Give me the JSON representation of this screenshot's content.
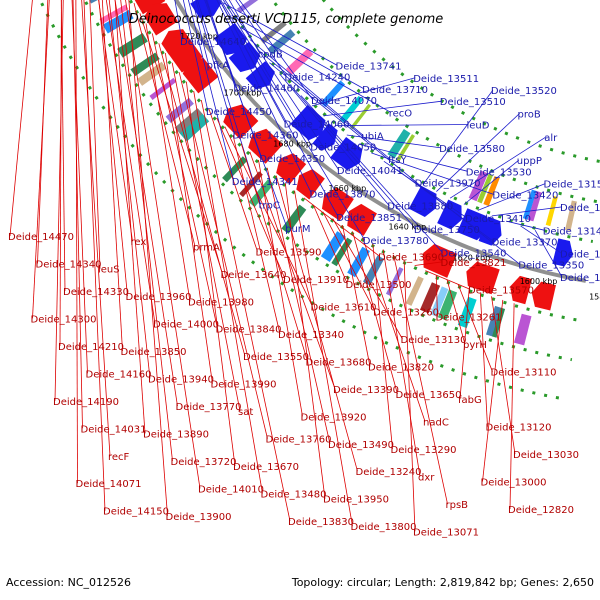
{
  "title": "Deinococcus deserti VCD115, complete genome",
  "footer": {
    "accession": "Accession: NC_012526",
    "summary": "Topology: circular; Length: 2,819,842 bp; Genes: 2,650"
  },
  "ticks": [
    {
      "label": "1800 kbp",
      "kbp": 1800
    },
    {
      "label": "1780 kbp",
      "kbp": 1780
    },
    {
      "label": "1760 kbp",
      "kbp": 1760
    },
    {
      "label": "1740 kbp",
      "kbp": 1740
    },
    {
      "label": "1720 kbp",
      "kbp": 1720
    },
    {
      "label": "1700 kbp",
      "kbp": 1700
    },
    {
      "label": "1680 kbp",
      "kbp": 1680
    },
    {
      "label": "1660 kbp",
      "kbp": 1660
    },
    {
      "label": "1640 kbp",
      "kbp": 1640
    },
    {
      "label": "1620 kbp",
      "kbp": 1620
    },
    {
      "label": "1600 kbp",
      "kbp": 1600
    },
    {
      "label": "1580 kbp",
      "kbp": 1580
    }
  ],
  "forward_labels": [
    "Deide_14640",
    "pfkA",
    "Deide_14460",
    "Deide_14450",
    "Deide_14360",
    "Deide_14350",
    "Deide_14341",
    "trpC",
    "purM",
    "cpdB",
    "Deide_14240",
    "Deide_14070",
    "Deide_14060",
    "Deide_14050",
    "Deide_14041",
    "Deide_13870",
    "Deide_13851",
    "Deide_13780",
    "Deide_13741",
    "Deide_13710",
    "recO",
    "ubiA",
    "ftsY",
    "Deide_13970",
    "Deide_13880",
    "Deide_13750",
    "Deide_13540",
    "Deide_13511",
    "Deide_13510",
    "leuD",
    "Deide_13580",
    "Deide_13530",
    "Deide_13420",
    "Deide_13410",
    "Deide_13370",
    "Deide_13350",
    "Deide_13520",
    "proB",
    "alr",
    "uppP",
    "Deide_13150",
    "Deide_13141",
    "Deide_13140",
    "Deide_13100",
    "Deide_13081"
  ],
  "reverse_labels": [
    "Deide_14470",
    "Deide_14340",
    "Deide_14330",
    "Deide_14300",
    "Deide_14210",
    "Deide_14160",
    "Deide_14190",
    "Deide_14031",
    "recF",
    "Deide_14071",
    "Deide_14150",
    "rex",
    "leuS",
    "Deide_13960",
    "Deide_14000",
    "Deide_13850",
    "Deide_13940",
    "Deide_13770",
    "Deide_13890",
    "Deide_13720",
    "Deide_14010",
    "Deide_13900",
    "prmA",
    "Deide_13640",
    "Deide_13980",
    "Deide_13840",
    "Deide_13550",
    "Deide_13990",
    "sat",
    "Deide_13760",
    "Deide_13670",
    "Deide_13480",
    "Deide_13830",
    "Deide_13590",
    "Deide_13910",
    "Deide_13610",
    "Deide_13340",
    "Deide_13680",
    "Deide_13390",
    "Deide_13920",
    "Deide_13490",
    "Deide_13240",
    "Deide_13950",
    "Deide_13800",
    "Deide_13690",
    "Deide_13500",
    "Deide_13260",
    "Deide_13130",
    "Deide_13820",
    "Deide_13650",
    "nadC",
    "Deide_13290",
    "dxr",
    "rpsB",
    "Deide_13071",
    "Deide_13821",
    "Deide_13570",
    "Deide_13261",
    "pyrH",
    "Deide_13110",
    "fabG",
    "Deide_13120",
    "Deide_13030",
    "Deide_13000",
    "Deide_12820"
  ],
  "colors": {
    "forward": "#1a1aee",
    "reverse": "#ee1111",
    "forward_line": "#1a1acc",
    "reverse_line": "#dd0000",
    "backbone": "#909090",
    "dots": "#2a9a2a",
    "feature_palette": [
      "#1e90ff",
      "#00ced1",
      "#9370db",
      "#3cb371",
      "#ff8c00",
      "#ffd700",
      "#808080",
      "#ff69b4",
      "#a52a2a",
      "#4682b4",
      "#7fffd4",
      "#9acd32",
      "#ba55d3",
      "#20b2aa",
      "#d2b48c",
      "#87cefa",
      "#6a5acd",
      "#2e8b57"
    ]
  }
}
